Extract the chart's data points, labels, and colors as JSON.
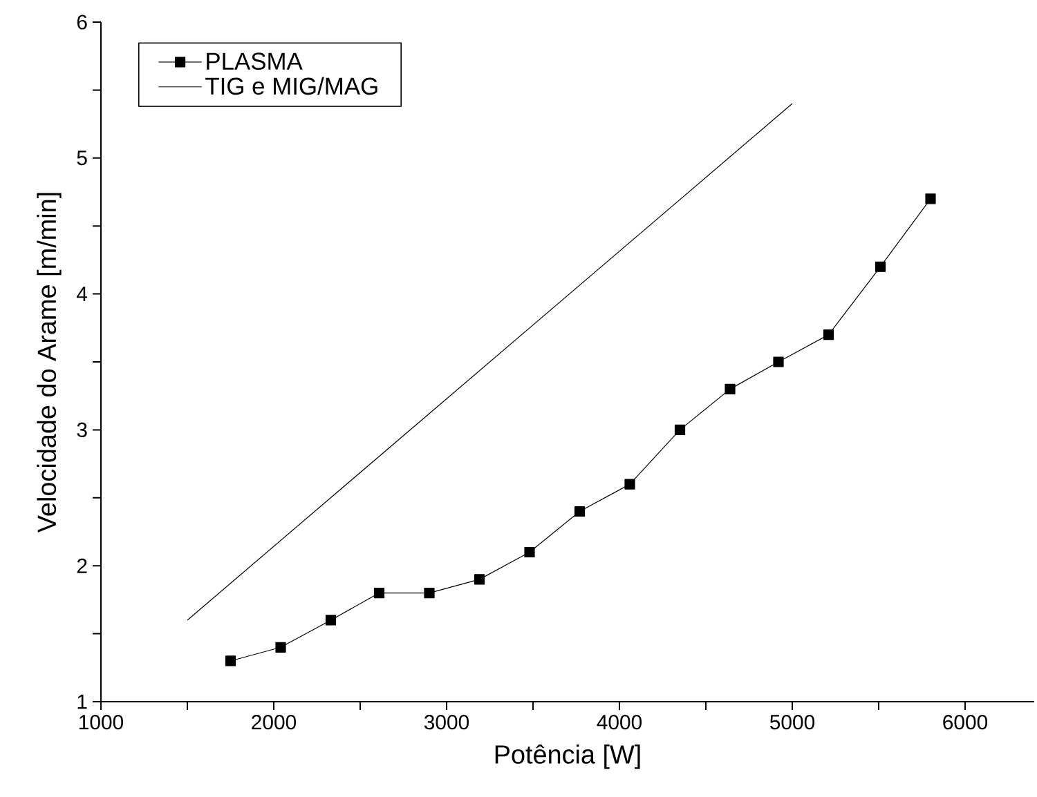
{
  "chart_data": {
    "type": "line",
    "xlabel": "Potência [W]",
    "ylabel": "Velocidade do Arame [m/min]",
    "xlim": [
      1000,
      6400
    ],
    "ylim": [
      1,
      6
    ],
    "xticks": [
      1000,
      {
        "value": 1500,
        "label": null
      },
      2000,
      {
        "value": 2500,
        "label": null
      },
      3000,
      {
        "value": 3500,
        "label": null
      },
      4000,
      {
        "value": 4500,
        "label": null
      },
      5000,
      {
        "value": 5500,
        "label": null
      },
      6000
    ],
    "yticks": [
      1,
      {
        "value": 1.5,
        "label": null
      },
      2,
      {
        "value": 2.5,
        "label": null
      },
      3,
      {
        "value": 3.5,
        "label": null
      },
      4,
      {
        "value": 4.5,
        "label": null
      },
      5,
      {
        "value": 5.5,
        "label": null
      },
      6
    ],
    "grid": false,
    "legend": "top left",
    "series": [
      {
        "name": "PLASMA",
        "color": "#000000",
        "marker": "square",
        "x": [
          1750,
          2040,
          2330,
          2610,
          2900,
          3190,
          3480,
          3770,
          4060,
          4350,
          4640,
          4920,
          5210,
          5510,
          5800
        ],
        "values": [
          1.3,
          1.4,
          1.6,
          1.8,
          1.8,
          1.9,
          2.1,
          2.4,
          2.6,
          3.0,
          3.3,
          3.5,
          3.7,
          4.2,
          4.7
        ]
      },
      {
        "name": "TIG e MIG/MAG",
        "color": "#000000",
        "marker": "none",
        "x": [
          1500,
          5000
        ],
        "values": [
          1.6,
          5.4
        ]
      }
    ]
  }
}
